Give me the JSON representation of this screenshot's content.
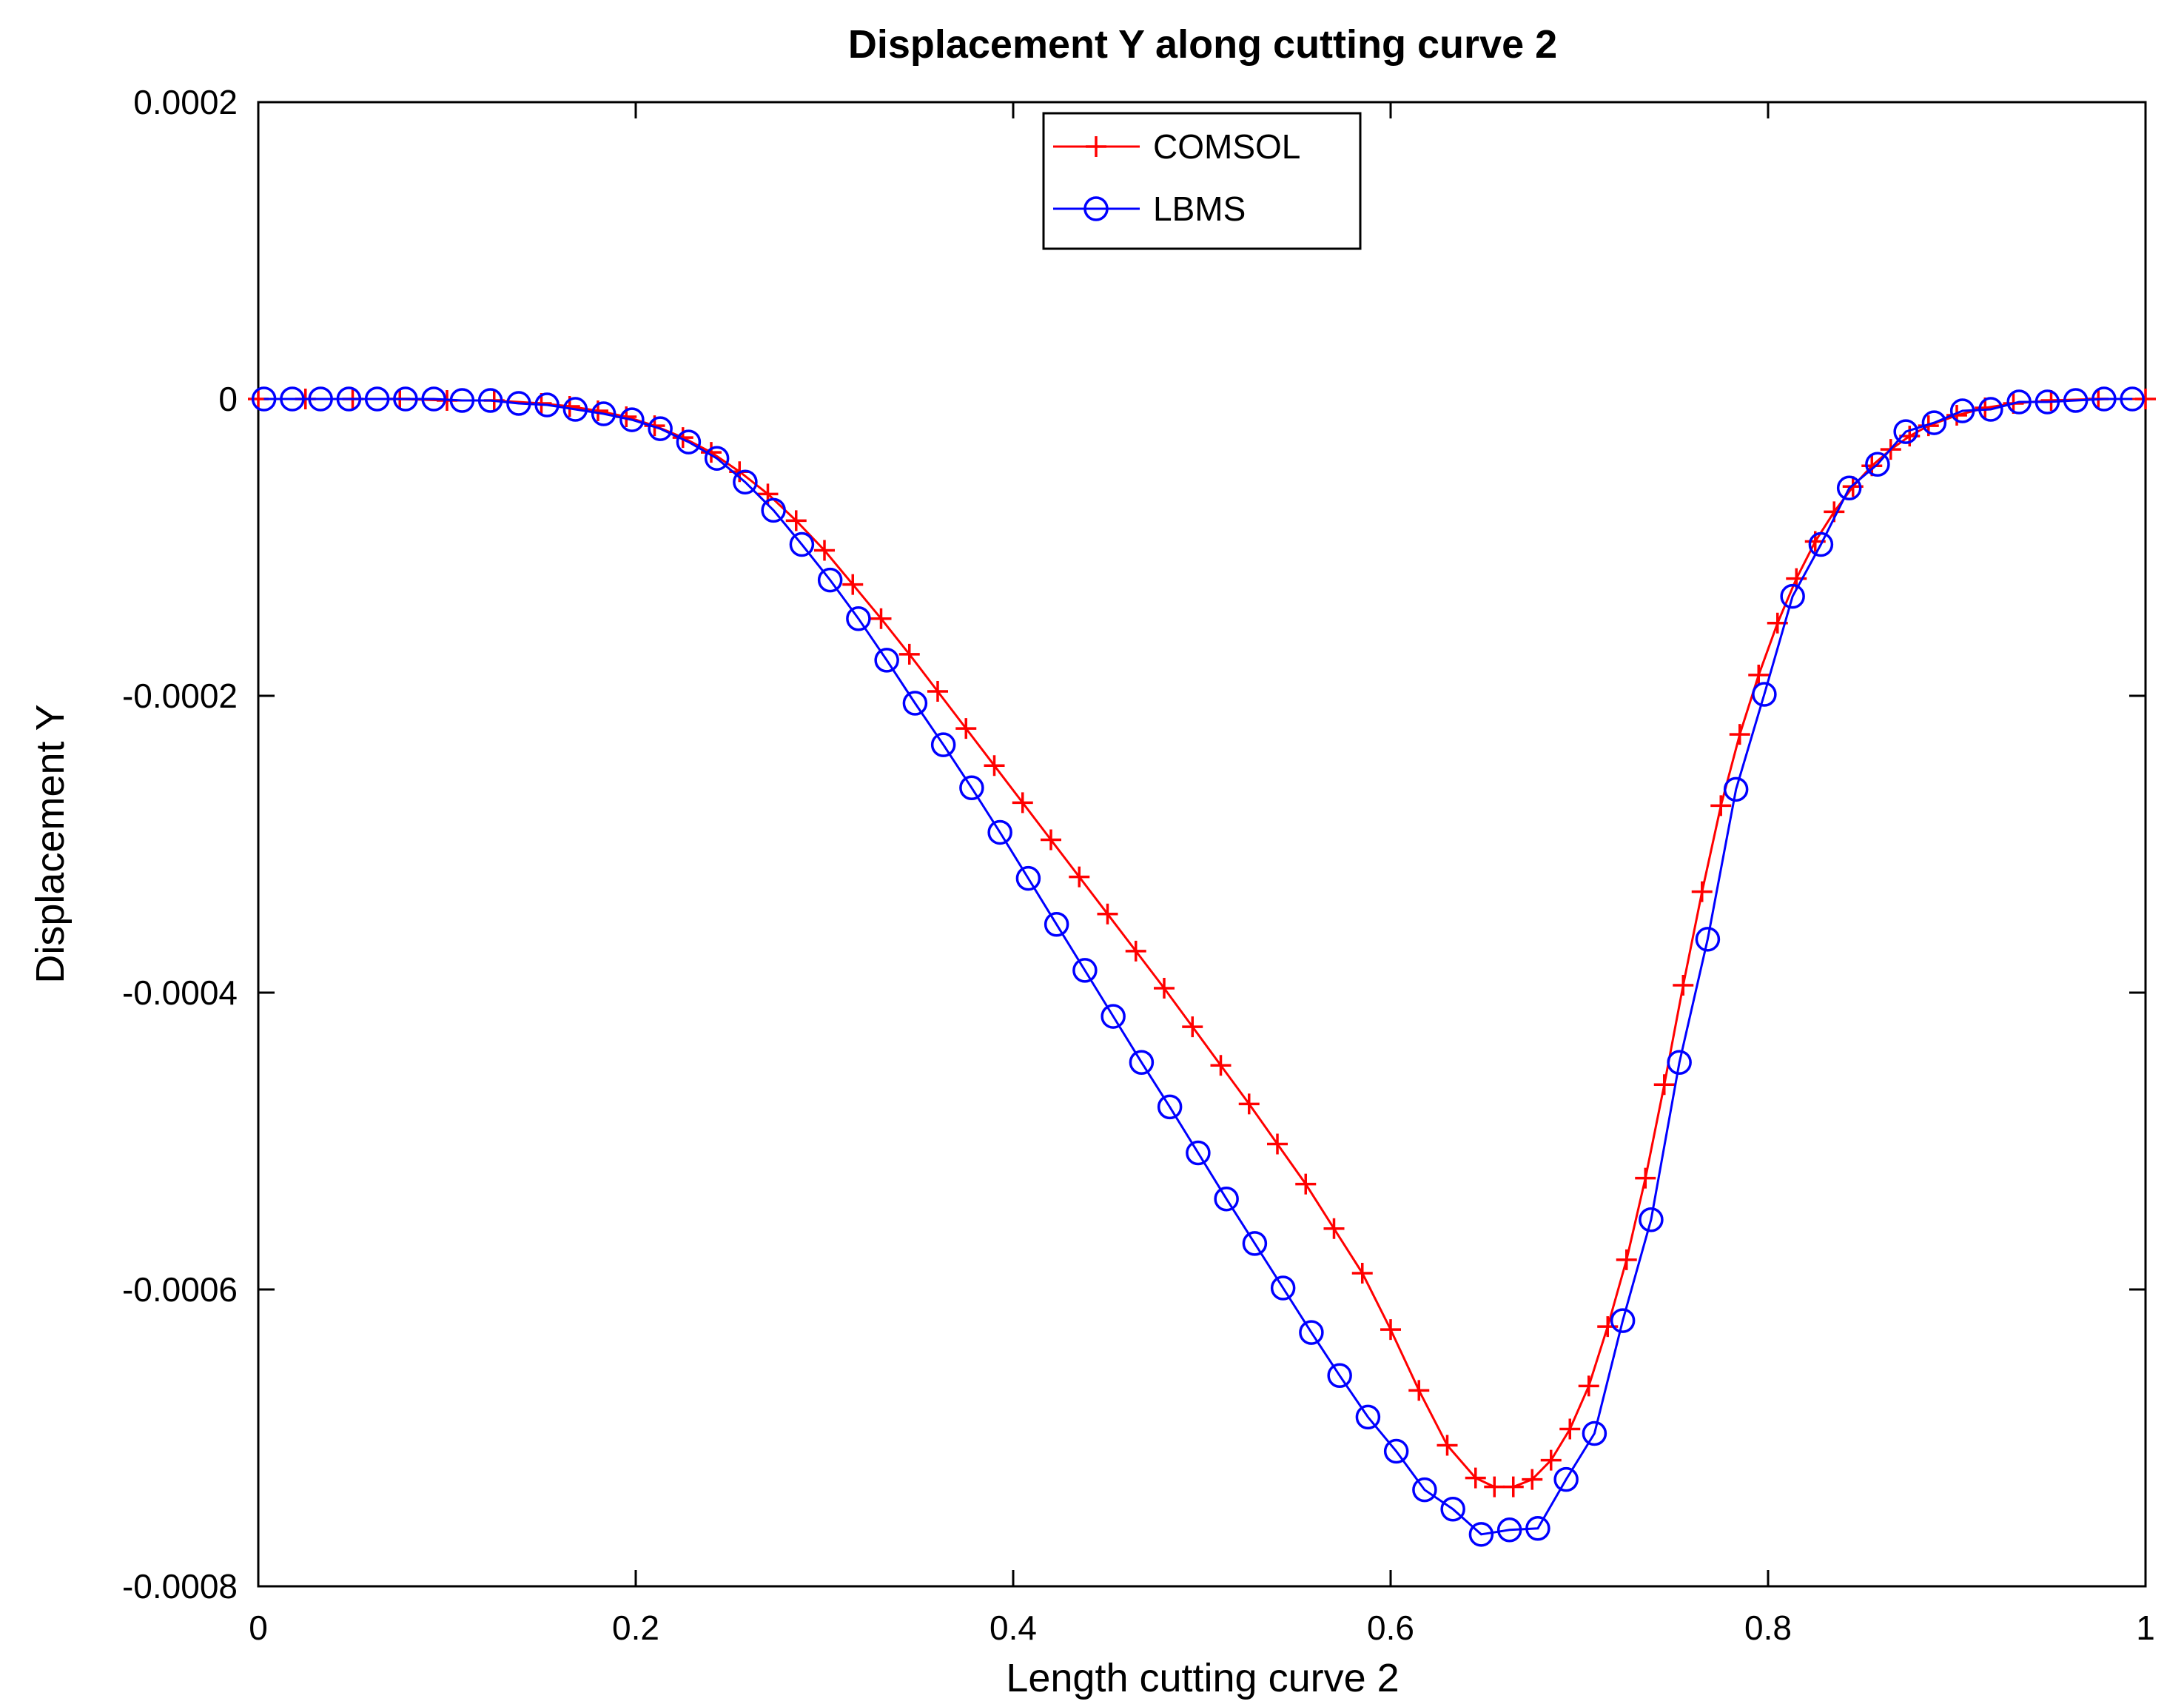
{
  "chart_data": {
    "type": "line",
    "title": "Displacement Y along cutting curve 2",
    "xlabel": "Length cutting curve 2",
    "ylabel": "Displacement Y",
    "xlim": [
      0,
      1
    ],
    "ylim": [
      -0.0008,
      0.0002
    ],
    "xticks": [
      0,
      0.2,
      0.4,
      0.6,
      0.8,
      1
    ],
    "xtick_labels": [
      "0",
      "0.2",
      "0.4",
      "0.6",
      "0.8",
      "1"
    ],
    "yticks": [
      0.0002,
      0,
      -0.0002,
      -0.0004,
      -0.0006,
      -0.0008
    ],
    "ytick_labels": [
      "0.0002",
      "0",
      "-0.0002",
      "-0.0004",
      "-0.0006",
      "-0.0008"
    ],
    "grid": false,
    "legend_position": "top-center",
    "series": [
      {
        "name": "COMSOL",
        "color": "#ff0000",
        "marker": "plus",
        "x": [
          0.0,
          0.025,
          0.05,
          0.075,
          0.1,
          0.125,
          0.15,
          0.165,
          0.18,
          0.195,
          0.21,
          0.225,
          0.24,
          0.255,
          0.27,
          0.285,
          0.3,
          0.315,
          0.33,
          0.345,
          0.36,
          0.375,
          0.39,
          0.405,
          0.42,
          0.435,
          0.45,
          0.465,
          0.48,
          0.495,
          0.51,
          0.525,
          0.54,
          0.555,
          0.57,
          0.585,
          0.6,
          0.615,
          0.63,
          0.645,
          0.655,
          0.665,
          0.675,
          0.685,
          0.695,
          0.705,
          0.715,
          0.725,
          0.735,
          0.745,
          0.755,
          0.765,
          0.775,
          0.785,
          0.795,
          0.805,
          0.815,
          0.825,
          0.835,
          0.845,
          0.855,
          0.865,
          0.875,
          0.885,
          0.9,
          0.915,
          0.93,
          0.95,
          0.975,
          1.0
        ],
        "y": [
          0.0,
          0.0,
          0.0,
          0.0,
          -1e-06,
          -1e-06,
          -3e-06,
          -5e-06,
          -8e-06,
          -1.2e-05,
          -1.8e-05,
          -2.6e-05,
          -3.6e-05,
          -4.9e-05,
          -6.4e-05,
          -8.2e-05,
          -0.000102,
          -0.000125,
          -0.000148,
          -0.000172,
          -0.000197,
          -0.000222,
          -0.000247,
          -0.000272,
          -0.000297,
          -0.000322,
          -0.000347,
          -0.000372,
          -0.000397,
          -0.000423,
          -0.000449,
          -0.000475,
          -0.000502,
          -0.000529,
          -0.000559,
          -0.000589,
          -0.000627,
          -0.000668,
          -0.000705,
          -0.000727,
          -0.000733,
          -0.000733,
          -0.000728,
          -0.000715,
          -0.000694,
          -0.000665,
          -0.000625,
          -0.00058,
          -0.000525,
          -0.000462,
          -0.000395,
          -0.000332,
          -0.000274,
          -0.000226,
          -0.000186,
          -0.000151,
          -0.000121,
          -9.6e-05,
          -7.6e-05,
          -5.9e-05,
          -4.5e-05,
          -3.4e-05,
          -2.5e-05,
          -1.8e-05,
          -1.1e-05,
          -6e-06,
          -3e-06,
          -1e-06,
          0.0,
          0.0
        ]
      },
      {
        "name": "LBMS",
        "color": "#0000ff",
        "marker": "circle",
        "x": [
          0.003,
          0.018,
          0.033,
          0.048,
          0.063,
          0.078,
          0.093,
          0.108,
          0.123,
          0.138,
          0.153,
          0.168,
          0.183,
          0.198,
          0.213,
          0.228,
          0.243,
          0.258,
          0.273,
          0.288,
          0.303,
          0.318,
          0.333,
          0.348,
          0.363,
          0.378,
          0.393,
          0.408,
          0.423,
          0.438,
          0.453,
          0.468,
          0.483,
          0.498,
          0.513,
          0.528,
          0.543,
          0.558,
          0.573,
          0.588,
          0.603,
          0.618,
          0.633,
          0.648,
          0.663,
          0.678,
          0.693,
          0.708,
          0.723,
          0.738,
          0.753,
          0.768,
          0.783,
          0.798,
          0.813,
          0.828,
          0.843,
          0.858,
          0.873,
          0.888,
          0.903,
          0.918,
          0.933,
          0.948,
          0.963,
          0.978,
          0.993
        ],
        "y": [
          0.0,
          0.0,
          0.0,
          0.0,
          0.0,
          0.0,
          0.0,
          -1e-06,
          -1e-06,
          -3e-06,
          -4e-06,
          -7e-06,
          -1e-05,
          -1.4e-05,
          -2e-05,
          -2.9e-05,
          -4e-05,
          -5.6e-05,
          -7.5e-05,
          -9.8e-05,
          -0.000122,
          -0.000148,
          -0.000176,
          -0.000205,
          -0.000233,
          -0.000262,
          -0.000292,
          -0.000323,
          -0.000354,
          -0.000385,
          -0.000416,
          -0.000447,
          -0.000477,
          -0.000508,
          -0.000539,
          -0.000569,
          -0.000599,
          -0.000629,
          -0.000658,
          -0.000686,
          -0.000709,
          -0.000735,
          -0.000748,
          -0.000765,
          -0.000762,
          -0.000761,
          -0.000728,
          -0.000697,
          -0.000621,
          -0.000553,
          -0.000447,
          -0.000364,
          -0.000263,
          -0.000199,
          -0.000133,
          -9.8e-05,
          -6e-05,
          -4.4e-05,
          -2.2e-05,
          -1.6e-05,
          -8e-06,
          -7e-06,
          -2e-06,
          -2e-06,
          -1e-06,
          0.0,
          0.0
        ]
      }
    ]
  }
}
